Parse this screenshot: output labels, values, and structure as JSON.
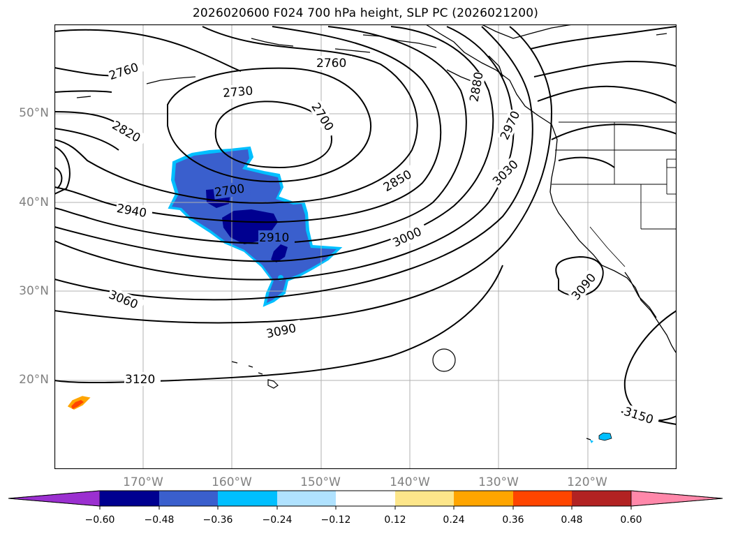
{
  "title": "2026020600 F024 700 hPa height, SLP PC (2026021200)",
  "lat_labels": [
    "50°N",
    "40°N",
    "30°N",
    "20°N"
  ],
  "lon_labels": [
    "170°W",
    "160°W",
    "150°W",
    "140°W",
    "130°W",
    "120°W"
  ],
  "contour_labels": [
    "2760",
    "2760",
    "2730",
    "2700",
    "2820",
    "2850",
    "2700",
    "2940",
    "2910",
    "3000",
    "3030",
    "2970",
    "2880",
    "3060",
    "3090",
    "3090",
    "3120",
    "3150"
  ],
  "colorbar": {
    "colors": [
      "#9b30d0",
      "#000090",
      "#3a5fcd",
      "#00bfff",
      "#b0e2ff",
      "#ffffff",
      "#fde68a",
      "#ffa500",
      "#ff4500",
      "#b22222",
      "#ff88aa"
    ],
    "tick_labels": [
      "−0.60",
      "−0.48",
      "−0.36",
      "−0.24",
      "−0.12",
      "0.12",
      "0.24",
      "0.36",
      "0.48",
      "0.60"
    ]
  }
}
